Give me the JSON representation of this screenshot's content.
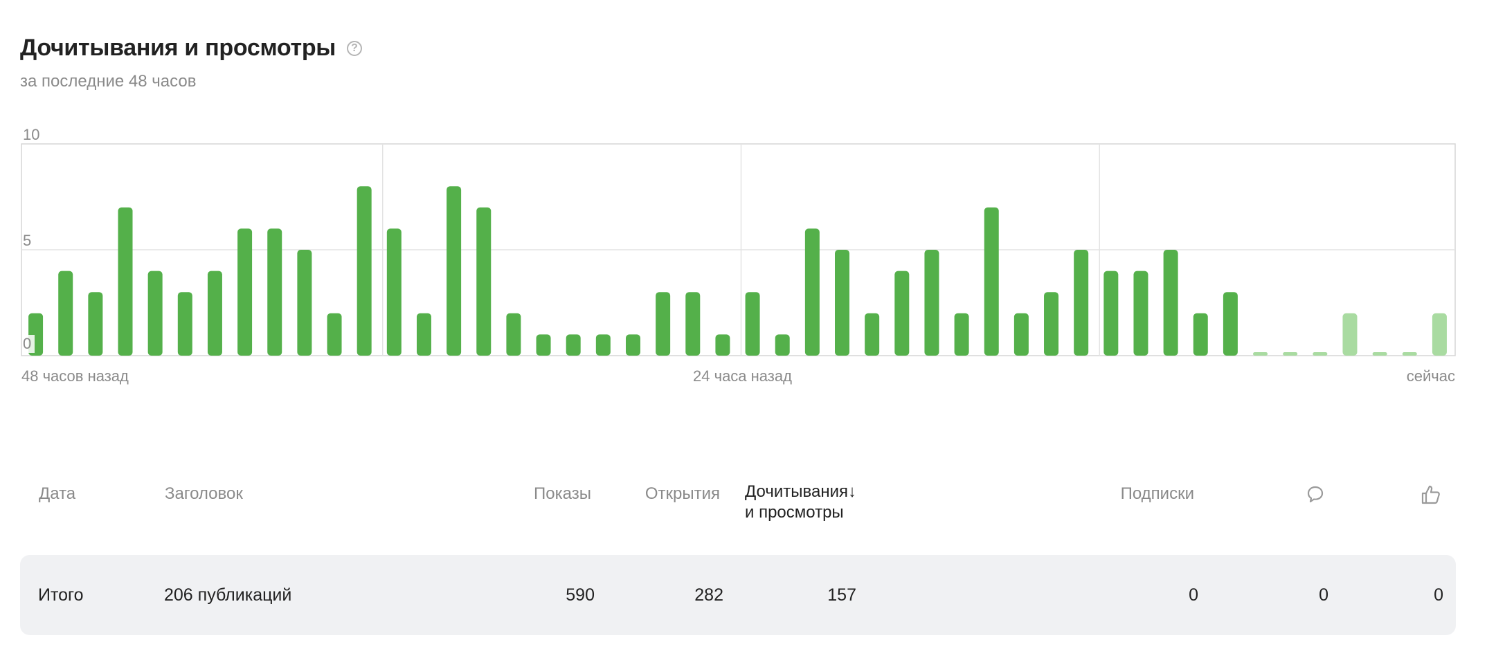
{
  "header": {
    "title": "Дочитывания и просмотры",
    "help_icon": "question-circle-icon",
    "subtitle": "за последние 48 часов"
  },
  "chart_data": {
    "type": "bar",
    "title": "Дочитывания и просмотры",
    "ylim": [
      0,
      10
    ],
    "y_ticks": [
      "10",
      "5",
      "0"
    ],
    "x_tick_labels": [
      "48 часов назад",
      "24 часа назад",
      "сейчас"
    ],
    "values": [
      2,
      4,
      3,
      7,
      4,
      3,
      4,
      6,
      6,
      5,
      2,
      8,
      6,
      2,
      8,
      7,
      2,
      1,
      1,
      1,
      1,
      3,
      3,
      1,
      3,
      1,
      6,
      5,
      2,
      4,
      5,
      2,
      7,
      2,
      3,
      5,
      4,
      4,
      5,
      2,
      3,
      0,
      0,
      0,
      2,
      0,
      0,
      2
    ],
    "recent_start_index": 41,
    "colors": {
      "bar": "#54b04a",
      "recent_bar": "#a9dba1",
      "grid": "#e3e3e3",
      "axis": "#d6d6d6"
    }
  },
  "table": {
    "columns": {
      "date": "Дата",
      "title": "Заголовок",
      "impressions": "Показы",
      "opens": "Открытия",
      "reads_line1": "Дочитывания",
      "sort_arrow": "↓",
      "reads_line2": "и просмотры",
      "subscriptions": "Подписки",
      "comments_icon": "comment-icon",
      "likes_icon": "thumbs-up-icon"
    },
    "total": {
      "label": "Итого",
      "publications": "206 публикаций",
      "impressions": "590",
      "opens": "282",
      "reads": "157",
      "subscriptions": "0",
      "comments": "0",
      "likes": "0"
    }
  }
}
